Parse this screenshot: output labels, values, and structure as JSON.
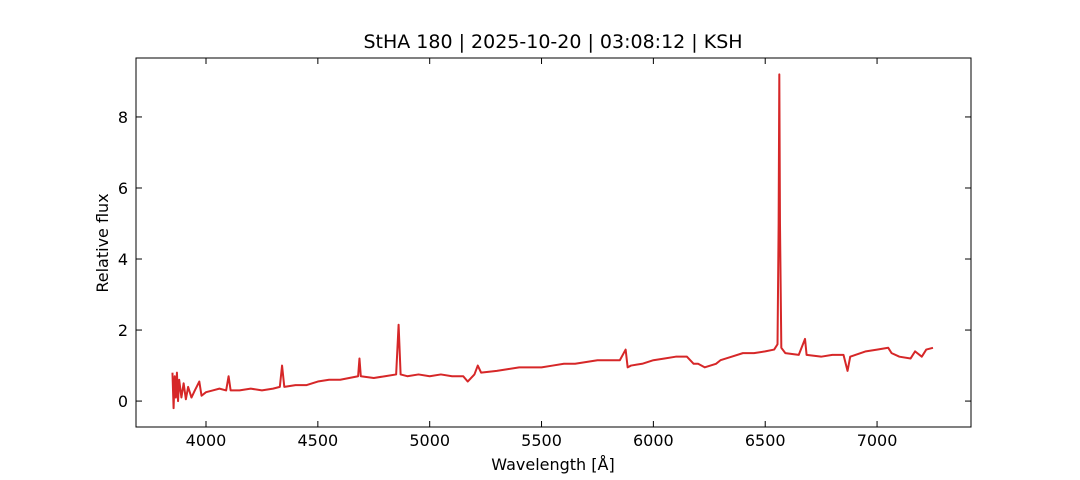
{
  "chart_data": {
    "type": "line",
    "title": "StHA 180 | 2025-10-20 | 03:08:12 | KSH",
    "xlabel": "Wavelength [Å]",
    "ylabel": "Relative flux",
    "color": "#d62728",
    "xlim": [
      3687,
      7420
    ],
    "ylim": [
      -0.73,
      9.66
    ],
    "xticks": [
      4000,
      4500,
      5000,
      5500,
      6000,
      6500,
      7000
    ],
    "yticks": [
      0,
      2,
      4,
      6,
      8
    ],
    "x": [
      3850,
      3855,
      3860,
      3865,
      3870,
      3875,
      3880,
      3890,
      3900,
      3910,
      3920,
      3935,
      3950,
      3970,
      3980,
      4000,
      4030,
      4060,
      4090,
      4101,
      4110,
      4150,
      4200,
      4250,
      4300,
      4330,
      4340,
      4350,
      4400,
      4450,
      4500,
      4550,
      4600,
      4640,
      4680,
      4686,
      4692,
      4750,
      4800,
      4850,
      4861,
      4870,
      4900,
      4950,
      5000,
      5050,
      5100,
      5150,
      5170,
      5200,
      5215,
      5230,
      5300,
      5350,
      5400,
      5450,
      5500,
      5550,
      5600,
      5650,
      5700,
      5750,
      5800,
      5850,
      5876,
      5885,
      5900,
      5950,
      6000,
      6050,
      6100,
      6150,
      6180,
      6200,
      6230,
      6280,
      6300,
      6350,
      6400,
      6450,
      6500,
      6540,
      6555,
      6560,
      6563,
      6566,
      6572,
      6590,
      6650,
      6678,
      6685,
      6750,
      6800,
      6850,
      6868,
      6880,
      6950,
      7000,
      7050,
      7065,
      7100,
      7150,
      7170,
      7200,
      7220,
      7250
    ],
    "values": [
      0.8,
      -0.2,
      0.7,
      0.1,
      0.8,
      0.0,
      0.6,
      0.1,
      0.5,
      0.05,
      0.4,
      0.1,
      0.3,
      0.55,
      0.15,
      0.25,
      0.3,
      0.35,
      0.3,
      0.7,
      0.3,
      0.3,
      0.35,
      0.3,
      0.35,
      0.4,
      1.0,
      0.4,
      0.45,
      0.45,
      0.55,
      0.6,
      0.6,
      0.65,
      0.7,
      1.2,
      0.7,
      0.65,
      0.7,
      0.75,
      2.15,
      0.75,
      0.7,
      0.75,
      0.7,
      0.75,
      0.7,
      0.7,
      0.55,
      0.75,
      1.0,
      0.8,
      0.85,
      0.9,
      0.95,
      0.95,
      0.95,
      1.0,
      1.05,
      1.05,
      1.1,
      1.15,
      1.15,
      1.15,
      1.45,
      0.95,
      1.0,
      1.05,
      1.15,
      1.2,
      1.25,
      1.25,
      1.05,
      1.05,
      0.95,
      1.05,
      1.15,
      1.25,
      1.35,
      1.35,
      1.4,
      1.45,
      1.6,
      5.0,
      9.2,
      5.0,
      1.5,
      1.35,
      1.3,
      1.75,
      1.3,
      1.25,
      1.3,
      1.3,
      0.85,
      1.25,
      1.4,
      1.45,
      1.5,
      1.35,
      1.25,
      1.2,
      1.4,
      1.25,
      1.45,
      1.5
    ]
  }
}
